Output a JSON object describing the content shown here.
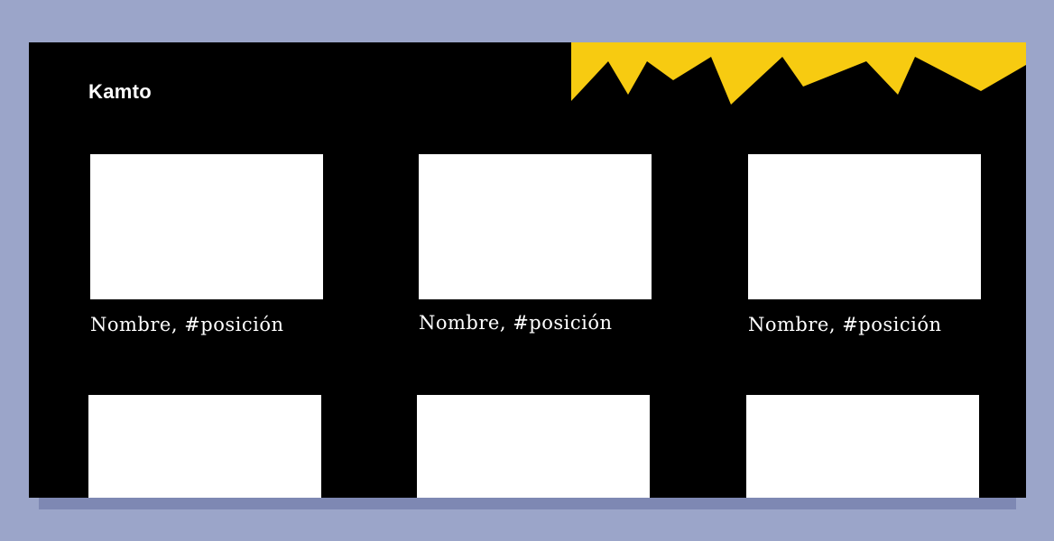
{
  "page": {
    "brand": "Kamto"
  },
  "team": {
    "members": [
      {
        "caption": "Nombre, #posición"
      },
      {
        "caption": "Nombre, #posición"
      },
      {
        "caption": "Nombre, #posición"
      },
      {
        "caption": ""
      },
      {
        "caption": ""
      },
      {
        "caption": ""
      }
    ]
  },
  "colors": {
    "background": "#9ba5c9",
    "shadow": "#7e88b3",
    "page": "#000000",
    "accent": "#f7cb11",
    "photo_placeholder": "#ffffff",
    "text": "#ffffff"
  },
  "decorations": {
    "top_right": "yellow-zigzag-banner"
  }
}
